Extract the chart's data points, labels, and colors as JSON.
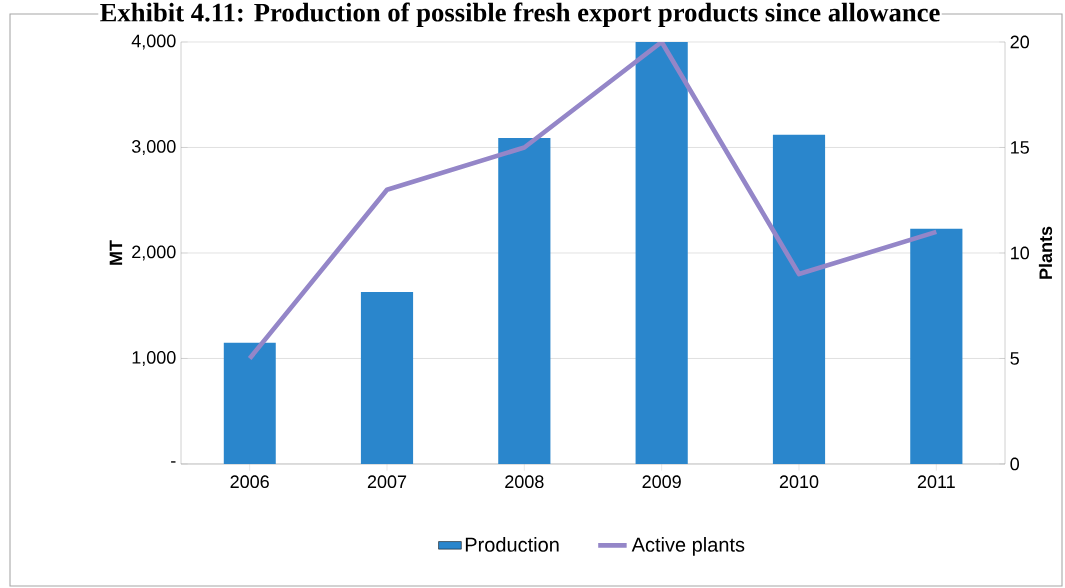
{
  "chart_data": {
    "type": "bar",
    "title": "Exhibit 4.11: Production of possible fresh export products since allowance",
    "categories": [
      "2006",
      "2007",
      "2008",
      "2009",
      "2010",
      "2011"
    ],
    "ylabel": "MT",
    "y2label": "Plants",
    "ylim": [
      0,
      4000
    ],
    "yticks": [
      {
        "value": 0,
        "label": "-"
      },
      {
        "value": 1000,
        "label": "1,000"
      },
      {
        "value": 2000,
        "label": "2,000"
      },
      {
        "value": 3000,
        "label": "3,000"
      },
      {
        "value": 4000,
        "label": "4,000"
      }
    ],
    "y2lim": [
      0,
      20
    ],
    "y2ticks": [
      0,
      5,
      10,
      15,
      20
    ],
    "grid": "y",
    "legend": "bottom",
    "series": [
      {
        "name": "Production",
        "color": "#2a86cc",
        "values": [
          1150,
          1630,
          3090,
          4000,
          3120,
          2230
        ]
      },
      {
        "name": "Active plants",
        "type": "line",
        "axis": "y2",
        "color": "#9486c8",
        "values": [
          5,
          13,
          15,
          20,
          9,
          11
        ]
      }
    ]
  }
}
